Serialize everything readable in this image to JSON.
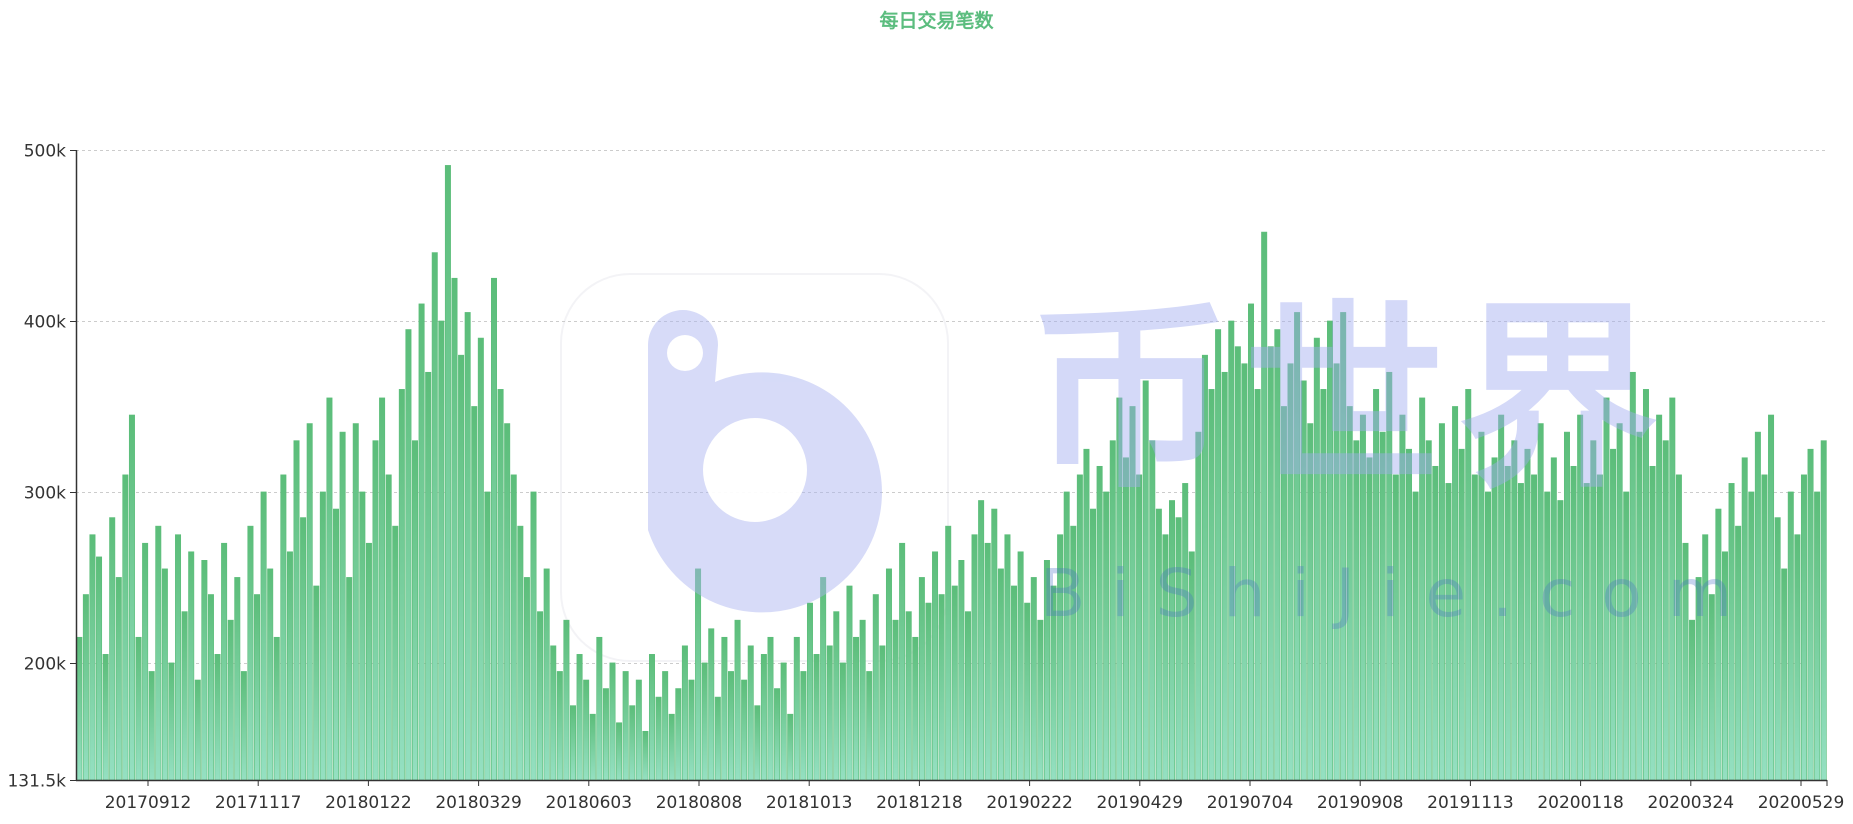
{
  "title": "每日交易笔数",
  "colors": {
    "title": "#5cbd7f",
    "bar_top": "#5bbd79",
    "bar_bottom": "#95e0c2",
    "grid": "#cccccc",
    "axis": "#333333",
    "watermark": "#c7cdf5"
  },
  "watermark": {
    "cn": "币世界",
    "en": "BiShiJie.com"
  },
  "chart_data": {
    "type": "bar",
    "title": "每日交易笔数",
    "xlabel": "",
    "ylabel": "",
    "ylim": [
      131500,
      500000
    ],
    "grid": true,
    "legend": "none",
    "y_ticks": [
      {
        "value": 131500,
        "label": "131.5k"
      },
      {
        "value": 200000,
        "label": "200k"
      },
      {
        "value": 300000,
        "label": "300k"
      },
      {
        "value": 400000,
        "label": "400k"
      },
      {
        "value": 500000,
        "label": "500k"
      }
    ],
    "x_ticks": [
      "20170912",
      "20171117",
      "20180122",
      "20180329",
      "20180603",
      "20180808",
      "20181013",
      "20181218",
      "20190222",
      "20190429",
      "20190704",
      "20190908",
      "20191113",
      "20200118",
      "20200324",
      "20200529"
    ],
    "x_start": "20170731",
    "x_end": "20200613",
    "sample_interval_days": 4,
    "values": [
      215000,
      240000,
      275000,
      262000,
      205000,
      285000,
      250000,
      310000,
      345000,
      215000,
      270000,
      195000,
      280000,
      255000,
      200000,
      275000,
      230000,
      265000,
      190000,
      260000,
      240000,
      205000,
      270000,
      225000,
      250000,
      195000,
      280000,
      240000,
      300000,
      255000,
      215000,
      310000,
      265000,
      330000,
      285000,
      340000,
      245000,
      300000,
      355000,
      290000,
      335000,
      250000,
      340000,
      300000,
      270000,
      330000,
      355000,
      310000,
      280000,
      360000,
      395000,
      330000,
      410000,
      370000,
      440000,
      400000,
      491000,
      425000,
      380000,
      405000,
      350000,
      390000,
      300000,
      425000,
      360000,
      340000,
      310000,
      280000,
      250000,
      300000,
      230000,
      255000,
      210000,
      195000,
      225000,
      175000,
      205000,
      190000,
      170000,
      215000,
      185000,
      200000,
      165000,
      195000,
      175000,
      190000,
      160000,
      205000,
      180000,
      195000,
      170000,
      185000,
      210000,
      190000,
      255000,
      200000,
      220000,
      180000,
      215000,
      195000,
      225000,
      190000,
      210000,
      175000,
      205000,
      215000,
      185000,
      200000,
      170000,
      215000,
      195000,
      235000,
      205000,
      250000,
      210000,
      230000,
      200000,
      245000,
      215000,
      225000,
      195000,
      240000,
      210000,
      255000,
      225000,
      270000,
      230000,
      215000,
      250000,
      235000,
      265000,
      240000,
      280000,
      245000,
      260000,
      230000,
      275000,
      295000,
      270000,
      290000,
      255000,
      275000,
      245000,
      265000,
      235000,
      250000,
      225000,
      260000,
      245000,
      275000,
      300000,
      280000,
      310000,
      325000,
      290000,
      315000,
      300000,
      330000,
      355000,
      320000,
      350000,
      310000,
      365000,
      330000,
      290000,
      275000,
      295000,
      285000,
      305000,
      265000,
      335000,
      380000,
      360000,
      395000,
      370000,
      400000,
      385000,
      375000,
      410000,
      360000,
      452000,
      385000,
      395000,
      350000,
      375000,
      405000,
      365000,
      340000,
      390000,
      360000,
      400000,
      375000,
      405000,
      350000,
      330000,
      345000,
      320000,
      360000,
      335000,
      370000,
      310000,
      345000,
      325000,
      300000,
      355000,
      330000,
      315000,
      340000,
      305000,
      350000,
      325000,
      360000,
      310000,
      335000,
      300000,
      320000,
      345000,
      315000,
      330000,
      305000,
      325000,
      310000,
      340000,
      300000,
      320000,
      295000,
      335000,
      315000,
      345000,
      305000,
      330000,
      310000,
      355000,
      325000,
      340000,
      300000,
      370000,
      335000,
      360000,
      315000,
      345000,
      330000,
      355000,
      310000,
      270000,
      225000,
      250000,
      275000,
      240000,
      290000,
      265000,
      305000,
      280000,
      320000,
      300000,
      335000,
      310000,
      345000,
      285000,
      255000,
      300000,
      275000,
      310000,
      325000,
      300000,
      330000
    ]
  }
}
